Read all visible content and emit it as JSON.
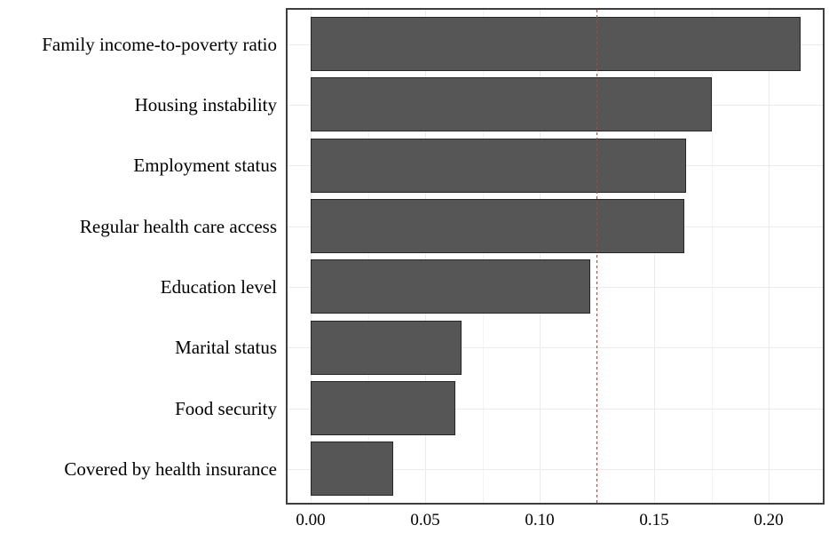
{
  "chart_data": {
    "type": "bar",
    "orientation": "horizontal",
    "title": "",
    "xlabel": "",
    "ylabel": "",
    "categories": [
      "Family income-to-poverty ratio",
      "Housing instability",
      "Employment status",
      "Regular health care access",
      "Education level",
      "Marital status",
      "Food security",
      "Covered by health insurance"
    ],
    "values": [
      0.214,
      0.175,
      0.164,
      0.163,
      0.122,
      0.066,
      0.063,
      0.036
    ],
    "x_ticks": [
      {
        "label": "0.00",
        "value": 0.0
      },
      {
        "label": "0.05",
        "value": 0.05
      },
      {
        "label": "0.10",
        "value": 0.1
      },
      {
        "label": "0.15",
        "value": 0.15
      },
      {
        "label": "0.20",
        "value": 0.2
      }
    ],
    "x_minor_gridlines": [
      0.025,
      0.075,
      0.125,
      0.175
    ],
    "xlim": [
      -0.0105,
      0.2245
    ],
    "reference_line": {
      "value": 0.125,
      "style": "dashed",
      "color": "#b0463a"
    },
    "legend": "none",
    "grid": "on",
    "colors": {
      "bar_fill": "#565656",
      "bar_stroke": "#262626",
      "panel_border": "#3e3e3e",
      "grid_major": "#eceaea",
      "grid_minor": "#f4f2f2",
      "text": "#000000",
      "background": "#ffffff"
    }
  }
}
